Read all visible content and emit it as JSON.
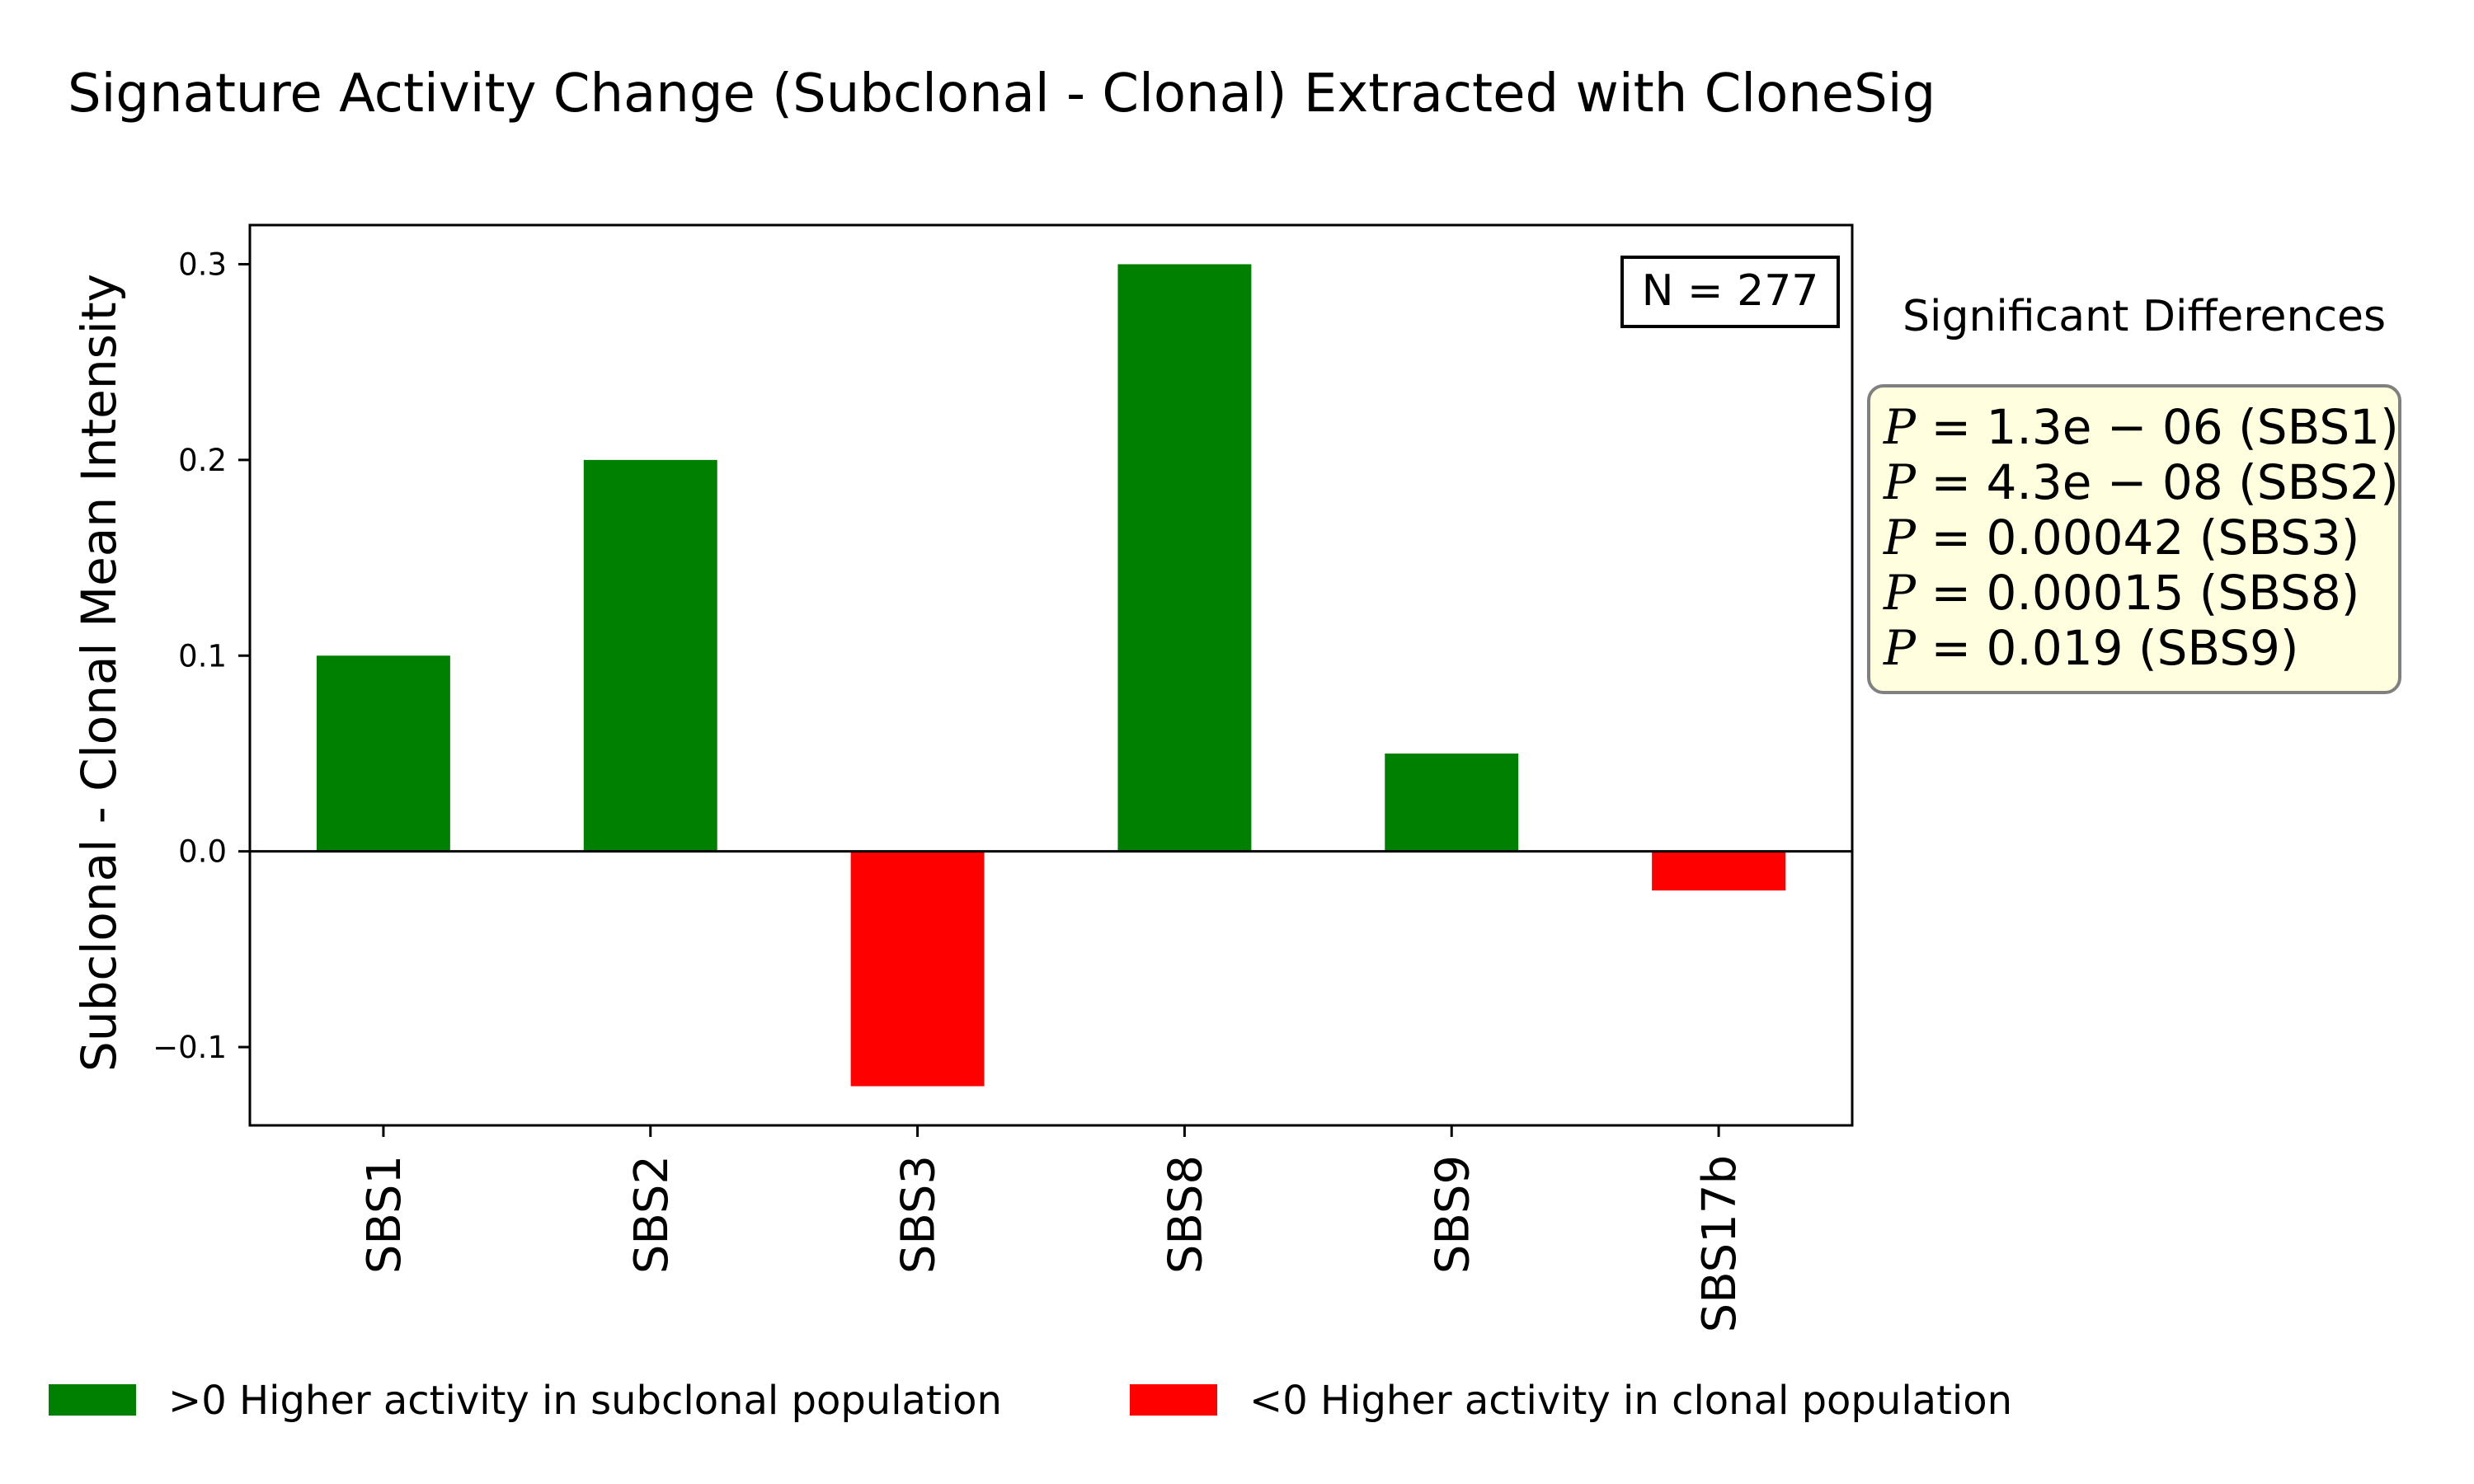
{
  "chart_data": {
    "type": "bar",
    "title": "Signature Activity Change (Subclonal - Clonal) Extracted with CloneSig",
    "xlabel": "",
    "ylabel": "Subclonal - Clonal Mean Intensity",
    "categories": [
      "SBS1",
      "SBS2",
      "SBS3",
      "SBS8",
      "SBS9",
      "SBS17b"
    ],
    "values": [
      0.1,
      0.2,
      -0.12,
      0.3,
      0.05,
      -0.02
    ],
    "ylim": [
      -0.14,
      0.32
    ],
    "yticks": [
      -0.1,
      0.0,
      0.1,
      0.2,
      0.3
    ],
    "ytick_labels": [
      "−0.1",
      "0.0",
      "0.1",
      "0.2",
      "0.3"
    ],
    "positive_color": "#008000",
    "negative_color": "#ff0000",
    "grid": false,
    "n_annotation": "N = 277",
    "significance": {
      "title": "Significant Differences",
      "box_color": "#ffffe0",
      "entries": [
        {
          "value": "1.3e − 06",
          "sig": "SBS1"
        },
        {
          "value": "4.3e − 08",
          "sig": "SBS2"
        },
        {
          "value": "0.00042",
          "sig": "SBS3"
        },
        {
          "value": "0.00015",
          "sig": "SBS8"
        },
        {
          "value": "0.019",
          "sig": "SBS9"
        }
      ]
    },
    "legend": {
      "placement": "bottom",
      "entries": [
        {
          "label": ">0 Higher activity in subclonal population",
          "color": "#008000"
        },
        {
          "label": "<0 Higher activity in clonal population",
          "color": "#ff0000"
        }
      ]
    }
  }
}
